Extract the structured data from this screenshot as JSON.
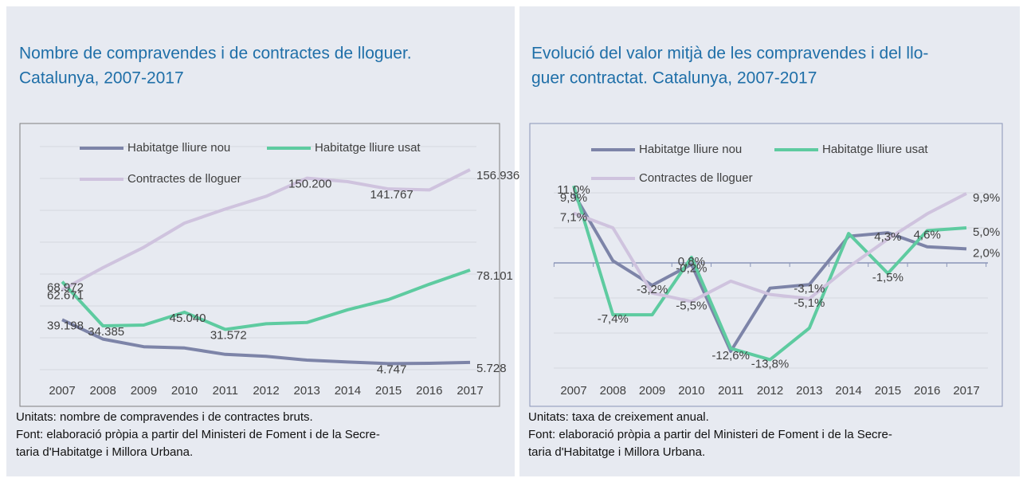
{
  "chart_data": [
    {
      "type": "line",
      "title": [
        "Nombre de compravendes i de contractes de lloguer.",
        "Catalunya, 2007-2017"
      ],
      "categories": [
        "2007",
        "2008",
        "2009",
        "2010",
        "2011",
        "2012",
        "2013",
        "2014",
        "2015",
        "2016",
        "2017"
      ],
      "series": [
        {
          "name": "Habitatge lliure nou",
          "color": "#7d84a8",
          "values": [
            39198,
            24000,
            18000,
            17000,
            12000,
            10500,
            7500,
            6000,
            4747,
            5000,
            5728
          ],
          "value_labels": [
            "39.198",
            null,
            null,
            null,
            null,
            null,
            null,
            null,
            "4.747",
            null,
            "5.728"
          ]
        },
        {
          "name": "Habitatge lliure usat",
          "color": "#5ecba0",
          "values": [
            68972,
            34385,
            35000,
            45040,
            31572,
            36000,
            37000,
            47000,
            55000,
            67000,
            78101
          ],
          "value_labels": [
            "68.972",
            "34.385",
            null,
            "45.040",
            "31.572",
            null,
            null,
            null,
            null,
            null,
            "78.101"
          ]
        },
        {
          "name": "Contractes de lloguer",
          "color": "#cfc3de",
          "values": [
            62671,
            80000,
            96000,
            115000,
            126000,
            136000,
            150200,
            147500,
            141767,
            141000,
            156936
          ],
          "value_labels": [
            "62.671",
            null,
            null,
            null,
            null,
            null,
            "150.200",
            null,
            "141.767",
            null,
            "156.936"
          ]
        }
      ],
      "ylim": [
        0,
        175000
      ],
      "yticks": [
        0,
        25000,
        50000,
        75000,
        100000,
        125000,
        150000,
        175000
      ],
      "grid": true,
      "notes": [
        "Unitats: nombre de compravendes i de contractes bruts.",
        "Font: elaboració pròpia a partir del Ministeri de Foment i de la Secre-",
        "taria d'Habitatge i Millora Urbana."
      ]
    },
    {
      "type": "line",
      "title": [
        "Evolució del valor mitjà de les compravendes i del llo-",
        "guer contractat. Catalunya, 2007-2017"
      ],
      "categories": [
        "2007",
        "2008",
        "2009",
        "2010",
        "2011",
        "2012",
        "2013",
        "2014",
        "2015",
        "2016",
        "2017"
      ],
      "series": [
        {
          "name": "Habitatge lliure nou",
          "color": "#7d84a8",
          "values": [
            9.9,
            0.3,
            -3.2,
            -0.2,
            -12.6,
            -3.6,
            -3.1,
            3.8,
            4.3,
            2.3,
            2.0
          ],
          "value_labels": [
            "9,9%",
            null,
            "-3,2%",
            "-0,2%",
            "-12,6%",
            null,
            "-3,1%",
            null,
            "4,3%",
            null,
            "2,0%"
          ]
        },
        {
          "name": "Habitatge lliure usat",
          "color": "#5ecba0",
          "values": [
            11.0,
            -7.4,
            -7.4,
            0.8,
            -12.2,
            -13.8,
            -9.3,
            4.2,
            -1.5,
            4.6,
            5.0
          ],
          "value_labels": [
            "11,0%",
            "-7,4%",
            null,
            "0,8%",
            null,
            "-13,8%",
            null,
            null,
            "-1,5%",
            "4,6%",
            "5,0%"
          ]
        },
        {
          "name": "Contractes de lloguer",
          "color": "#cfc3de",
          "values": [
            7.1,
            5.0,
            -4.3,
            -5.5,
            -2.6,
            -4.5,
            -5.1,
            -0.6,
            3.4,
            7.0,
            9.9
          ],
          "value_labels": [
            "7,1%",
            null,
            null,
            "-5,5%",
            null,
            null,
            "-5,1%",
            null,
            null,
            null,
            "9,9%"
          ]
        }
      ],
      "ylim": [
        -15,
        15
      ],
      "yticks": [
        -15,
        -10,
        -5,
        0,
        5,
        10
      ],
      "grid": true,
      "notes": [
        "Unitats: taxa de creixement anual.",
        "Font: elaboració pròpia a partir del Ministeri de Foment i de la Secre-",
        "taria d'Habitatge i Millora Urbana."
      ]
    }
  ]
}
